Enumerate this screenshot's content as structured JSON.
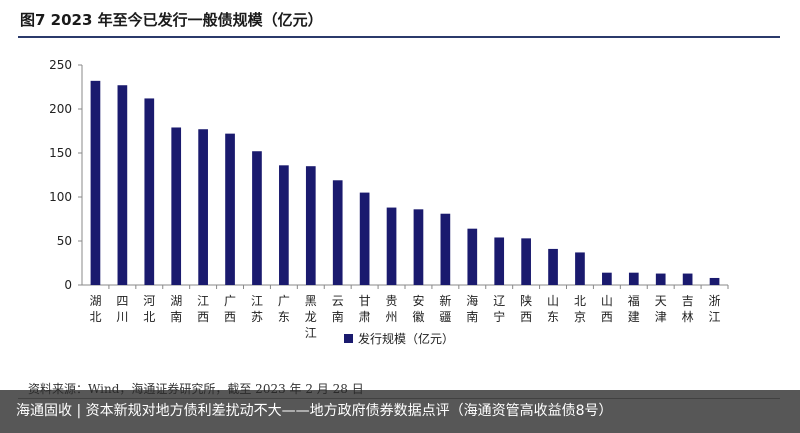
{
  "figure": {
    "title": "图7  2023 年至今已发行一般债规模（亿元）",
    "source": "资料来源：Wind，海通证券研究所，截至 2023 年 2 月 28 日"
  },
  "banner": {
    "text": "海通固收 | 资本新规对地方债利差扰动不大——地方政府债券数据点评（海通资管高收益债8号）"
  },
  "colors": {
    "bar": "#1a1a6e",
    "axis": "#888888",
    "title_rule": "#2b3a6b"
  },
  "chart_data": {
    "type": "bar",
    "title": "",
    "xlabel": "",
    "ylabel": "",
    "ylim": [
      0,
      250
    ],
    "yticks": [
      0,
      50,
      100,
      150,
      200,
      250
    ],
    "grid": false,
    "legend_position": "bottom",
    "categories": [
      "湖北",
      "四川",
      "河北",
      "湖南",
      "江西",
      "广西",
      "江苏",
      "广东",
      "黑龙江",
      "云南",
      "甘肃",
      "贵州",
      "安徽",
      "新疆",
      "海南",
      "辽宁",
      "陕西",
      "山东",
      "北京",
      "山西",
      "福建",
      "天津",
      "吉林",
      "浙江"
    ],
    "series": [
      {
        "name": "发行规模（亿元）",
        "values": [
          232,
          227,
          212,
          179,
          177,
          172,
          152,
          136,
          135,
          119,
          105,
          88,
          86,
          81,
          64,
          54,
          53,
          41,
          37,
          14,
          14,
          13,
          13,
          8
        ]
      }
    ]
  }
}
